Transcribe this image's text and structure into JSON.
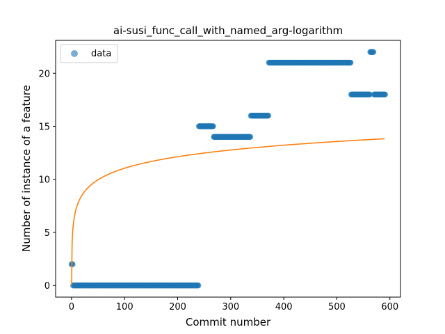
{
  "chart_data": {
    "type": "scatter",
    "title": "ai-susi_func_call_with_named_arg-logarithm",
    "xlabel": "Commit number",
    "ylabel": "Number of instance of a feature",
    "xlim": [
      -30,
      620
    ],
    "ylim": [
      -1.1,
      23.1
    ],
    "xticks": [
      0,
      100,
      200,
      300,
      400,
      500,
      600
    ],
    "yticks": [
      0,
      5,
      10,
      15,
      20
    ],
    "grid": false,
    "legend": {
      "position": "top-left",
      "entries": [
        "data"
      ]
    },
    "colors": {
      "data": "#1f77b4",
      "fit": "#ff7f0e"
    },
    "series": [
      {
        "name": "data",
        "kind": "scatter",
        "segments": [
          {
            "x_start": 0,
            "x_end": 3,
            "y": 2
          },
          {
            "x_start": 3,
            "x_end": 240,
            "y": 0
          },
          {
            "x_start": 240,
            "x_end": 268,
            "y": 15
          },
          {
            "x_start": 268,
            "x_end": 338,
            "y": 14
          },
          {
            "x_start": 338,
            "x_end": 372,
            "y": 16
          },
          {
            "x_start": 372,
            "x_end": 527,
            "y": 21
          },
          {
            "x_start": 527,
            "x_end": 563,
            "y": 18
          },
          {
            "x_start": 563,
            "x_end": 570,
            "y": 22
          },
          {
            "x_start": 570,
            "x_end": 592,
            "y": 18
          }
        ]
      },
      {
        "kind": "line",
        "model": "logarithm",
        "a": 1.565,
        "b": 3.84,
        "x_range": [
          1,
          590
        ]
      }
    ]
  }
}
